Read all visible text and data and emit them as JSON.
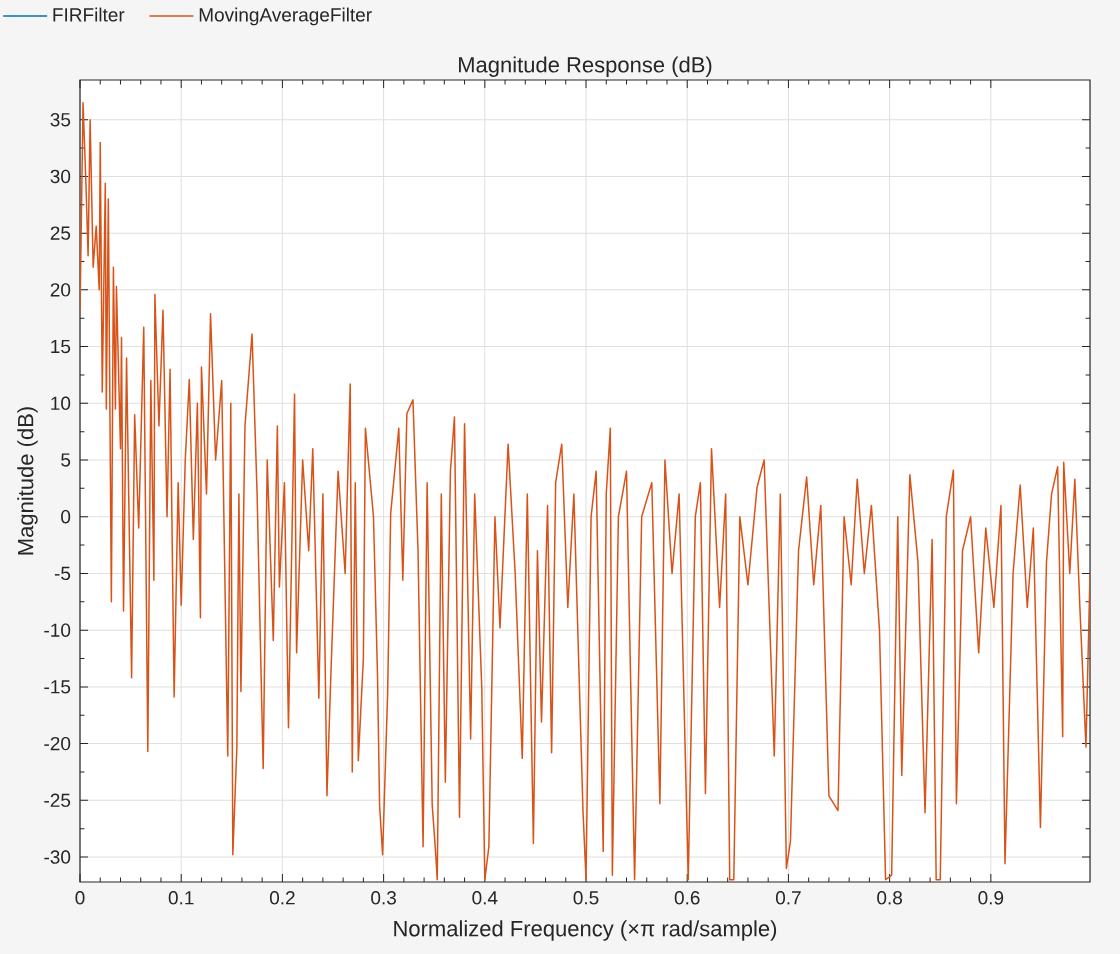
{
  "chart_data": {
    "type": "line",
    "title": "Magnitude Response (dB)",
    "xlabel": "Normalized Frequency (×π rad/sample)",
    "ylabel": "Magnitude (dB)",
    "x": [
      0.0,
      0.003,
      0.006,
      0.008,
      0.01,
      0.013,
      0.016,
      0.019,
      0.02,
      0.022,
      0.025,
      0.026,
      0.028,
      0.031,
      0.033,
      0.035,
      0.036,
      0.04,
      0.041,
      0.043,
      0.046,
      0.049,
      0.051,
      0.054,
      0.058,
      0.063,
      0.067,
      0.07,
      0.073,
      0.074,
      0.078,
      0.082,
      0.086,
      0.089,
      0.093,
      0.097,
      0.1,
      0.104,
      0.108,
      0.112,
      0.116,
      0.119,
      0.12,
      0.125,
      0.129,
      0.134,
      0.14,
      0.146,
      0.149,
      0.151,
      0.155,
      0.157,
      0.159,
      0.163,
      0.17,
      0.175,
      0.181,
      0.185,
      0.191,
      0.195,
      0.197,
      0.202,
      0.206,
      0.212,
      0.214,
      0.22,
      0.226,
      0.23,
      0.236,
      0.24,
      0.244,
      0.248,
      0.255,
      0.262,
      0.267,
      0.269,
      0.272,
      0.275,
      0.28,
      0.282,
      0.29,
      0.294,
      0.296,
      0.299,
      0.304,
      0.307,
      0.315,
      0.319,
      0.323,
      0.329,
      0.334,
      0.339,
      0.343,
      0.348,
      0.351,
      0.353,
      0.357,
      0.361,
      0.366,
      0.37,
      0.375,
      0.38,
      0.386,
      0.39,
      0.397,
      0.4,
      0.404,
      0.41,
      0.415,
      0.423,
      0.43,
      0.437,
      0.442,
      0.448,
      0.452,
      0.456,
      0.462,
      0.466,
      0.47,
      0.476,
      0.482,
      0.488,
      0.497,
      0.5,
      0.505,
      0.51,
      0.517,
      0.52,
      0.524,
      0.526,
      0.532,
      0.54,
      0.548,
      0.555,
      0.565,
      0.573,
      0.578,
      0.585,
      0.592,
      0.601,
      0.608,
      0.613,
      0.618,
      0.624,
      0.632,
      0.638,
      0.642,
      0.646,
      0.652,
      0.66,
      0.669,
      0.676,
      0.681,
      0.686,
      0.692,
      0.698,
      0.702,
      0.71,
      0.718,
      0.725,
      0.732,
      0.74,
      0.749,
      0.755,
      0.762,
      0.768,
      0.775,
      0.782,
      0.79,
      0.796,
      0.802,
      0.808,
      0.812,
      0.82,
      0.828,
      0.835,
      0.842,
      0.846,
      0.85,
      0.856,
      0.863,
      0.866,
      0.872,
      0.88,
      0.888,
      0.895,
      0.903,
      0.91,
      0.914,
      0.922,
      0.929,
      0.936,
      0.942,
      0.949,
      0.955,
      0.96,
      0.966,
      0.971,
      0.972,
      0.978,
      0.983,
      0.988,
      0.994,
      0.998
    ],
    "series": [
      {
        "name": "FIRFilter",
        "color": "#0072bd",
        "values": [
          null,
          null,
          null,
          null,
          null,
          null,
          null,
          null,
          null,
          null,
          null,
          null,
          null,
          null,
          null,
          null,
          null,
          null,
          null,
          null,
          null,
          null,
          null,
          null,
          null,
          null,
          null,
          null,
          null,
          null,
          null,
          null,
          null,
          null,
          null,
          null,
          null,
          null,
          null,
          null,
          null,
          null,
          null,
          null,
          null,
          null,
          null,
          null,
          null,
          null,
          null,
          null,
          null,
          null,
          null,
          null,
          null,
          null,
          null,
          null,
          null,
          null,
          null,
          null,
          null,
          null,
          null,
          null,
          null,
          null,
          null,
          null,
          null,
          null,
          null,
          null,
          null,
          null,
          null,
          null,
          null,
          null,
          null,
          null,
          null,
          null,
          null,
          null,
          null,
          null,
          null,
          null,
          null,
          null,
          null,
          null,
          null,
          null,
          null,
          null,
          null,
          null,
          null,
          null,
          null,
          null,
          null,
          null,
          null,
          null,
          null,
          null,
          null,
          null,
          null,
          null,
          null,
          null,
          null,
          null,
          null,
          null,
          null,
          null,
          null,
          null,
          null,
          null,
          null,
          null,
          null,
          null,
          null,
          null,
          null,
          null,
          null,
          null,
          null,
          null,
          null,
          null,
          null,
          null,
          null,
          null,
          null,
          null,
          null,
          null,
          null,
          null,
          null,
          null,
          null,
          null,
          null,
          null,
          null,
          null,
          null,
          null,
          null,
          null,
          null,
          null,
          null,
          null,
          null,
          null,
          null,
          null,
          null,
          null,
          null,
          null,
          null,
          null,
          null,
          null,
          null,
          null,
          null,
          null,
          null,
          null,
          null,
          null,
          null,
          null,
          null,
          null,
          null,
          null,
          null,
          null,
          null,
          null,
          null,
          null,
          null,
          null,
          null,
          null
        ]
      },
      {
        "name": "MovingAverageFilter",
        "color": "#d95319",
        "values": [
          18,
          36.5,
          29,
          23,
          35,
          22,
          25.6,
          20,
          33,
          11,
          29.4,
          9.5,
          28,
          -7.5,
          22,
          9.5,
          20.3,
          6,
          15.8,
          -8.3,
          14,
          -3,
          -14.2,
          9,
          -1,
          16.7,
          -20.7,
          12,
          -5.6,
          19.6,
          8,
          18.2,
          0,
          13,
          -15.9,
          3,
          -7.8,
          5,
          12.1,
          -2,
          10,
          -8.9,
          13.2,
          2,
          17.9,
          5,
          12,
          -21.1,
          10,
          -29.8,
          -20.3,
          2,
          -15.4,
          8,
          16.1,
          2,
          -22.2,
          5,
          -10.9,
          8,
          -6.2,
          3,
          -18.6,
          10.8,
          -12,
          5,
          -3,
          6,
          -16,
          2,
          -24.6,
          -13.6,
          4,
          -5,
          11.7,
          -22.5,
          3,
          -21.5,
          -12.5,
          7.8,
          0,
          -14.1,
          -25.4,
          -29.8,
          -15.5,
          0.3,
          7.8,
          -5.6,
          9.1,
          10.3,
          -3,
          -29.1,
          3,
          -25.4,
          -29.1,
          -32,
          2,
          -23.4,
          4,
          8.8,
          -26.5,
          8.2,
          -19.6,
          2,
          -15.1,
          -32,
          -29.1,
          0,
          -9.8,
          6.4,
          -5,
          -21.3,
          2,
          -28.8,
          -3,
          -18.1,
          1,
          -20.8,
          3,
          6.4,
          -8,
          2,
          -25.9,
          -32,
          0,
          4,
          -29.5,
          2,
          7.8,
          -31.6,
          0,
          4,
          -32,
          0,
          3,
          -25.3,
          5,
          -5,
          2,
          -32,
          0,
          3,
          -24.4,
          6,
          -8,
          2,
          -32,
          -32,
          0,
          -6,
          2.6,
          5,
          -8,
          -21.1,
          2,
          -31,
          -28.6,
          -3,
          3.5,
          -6,
          1,
          -24.6,
          -25.9,
          0,
          -6,
          3.3,
          -5,
          1,
          -10,
          -32,
          -31.6,
          0,
          -22.8,
          3.7,
          -4,
          -26.1,
          -2,
          -32,
          -32,
          0,
          4.1,
          -25.3,
          -3,
          0,
          -12,
          -1,
          -8,
          1,
          -30.6,
          -5,
          2.8,
          -8,
          -1,
          -27.4,
          -4,
          2,
          4.4,
          -19.4,
          4.8,
          -5,
          3.3,
          -8,
          -20.3,
          -5
        ]
      }
    ],
    "xlim": [
      0,
      0.998
    ],
    "ylim": [
      -32.2,
      38.5
    ],
    "xticks": [
      0,
      0.1,
      0.2,
      0.3,
      0.4,
      0.5,
      0.6,
      0.7,
      0.8,
      0.9
    ],
    "yticks": [
      -30,
      -25,
      -20,
      -15,
      -10,
      -5,
      0,
      5,
      10,
      15,
      20,
      25,
      30,
      35
    ],
    "grid": true,
    "legend": "top left"
  }
}
